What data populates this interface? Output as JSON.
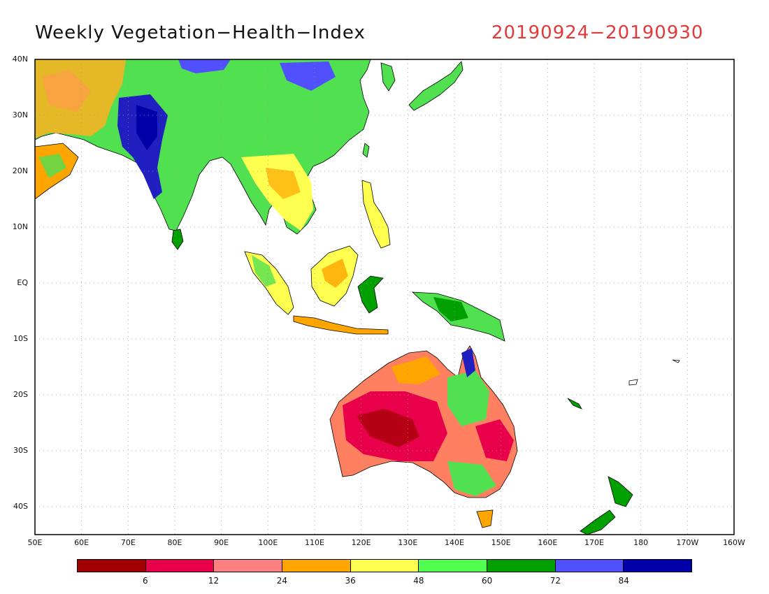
{
  "title": "Weekly Vegetation−Health−Index",
  "date_range": "20190924−20190930",
  "lat_labels": [
    "40N",
    "30N",
    "20N",
    "10N",
    "EQ",
    "10S",
    "20S",
    "30S",
    "40S"
  ],
  "lon_labels": [
    "50E",
    "60E",
    "70E",
    "80E",
    "90E",
    "100E",
    "110E",
    "120E",
    "130E",
    "140E",
    "150E",
    "160E",
    "170E",
    "180",
    "170W",
    "160W"
  ],
  "colorbar": {
    "colors": [
      "#a00000",
      "#e8004a",
      "#ff8080",
      "#ffa500",
      "#ffff50",
      "#50ff50",
      "#00a000",
      "#5050ff",
      "#0000a8"
    ],
    "labels": [
      "6",
      "12",
      "24",
      "36",
      "48",
      "60",
      "72",
      "84"
    ]
  }
}
